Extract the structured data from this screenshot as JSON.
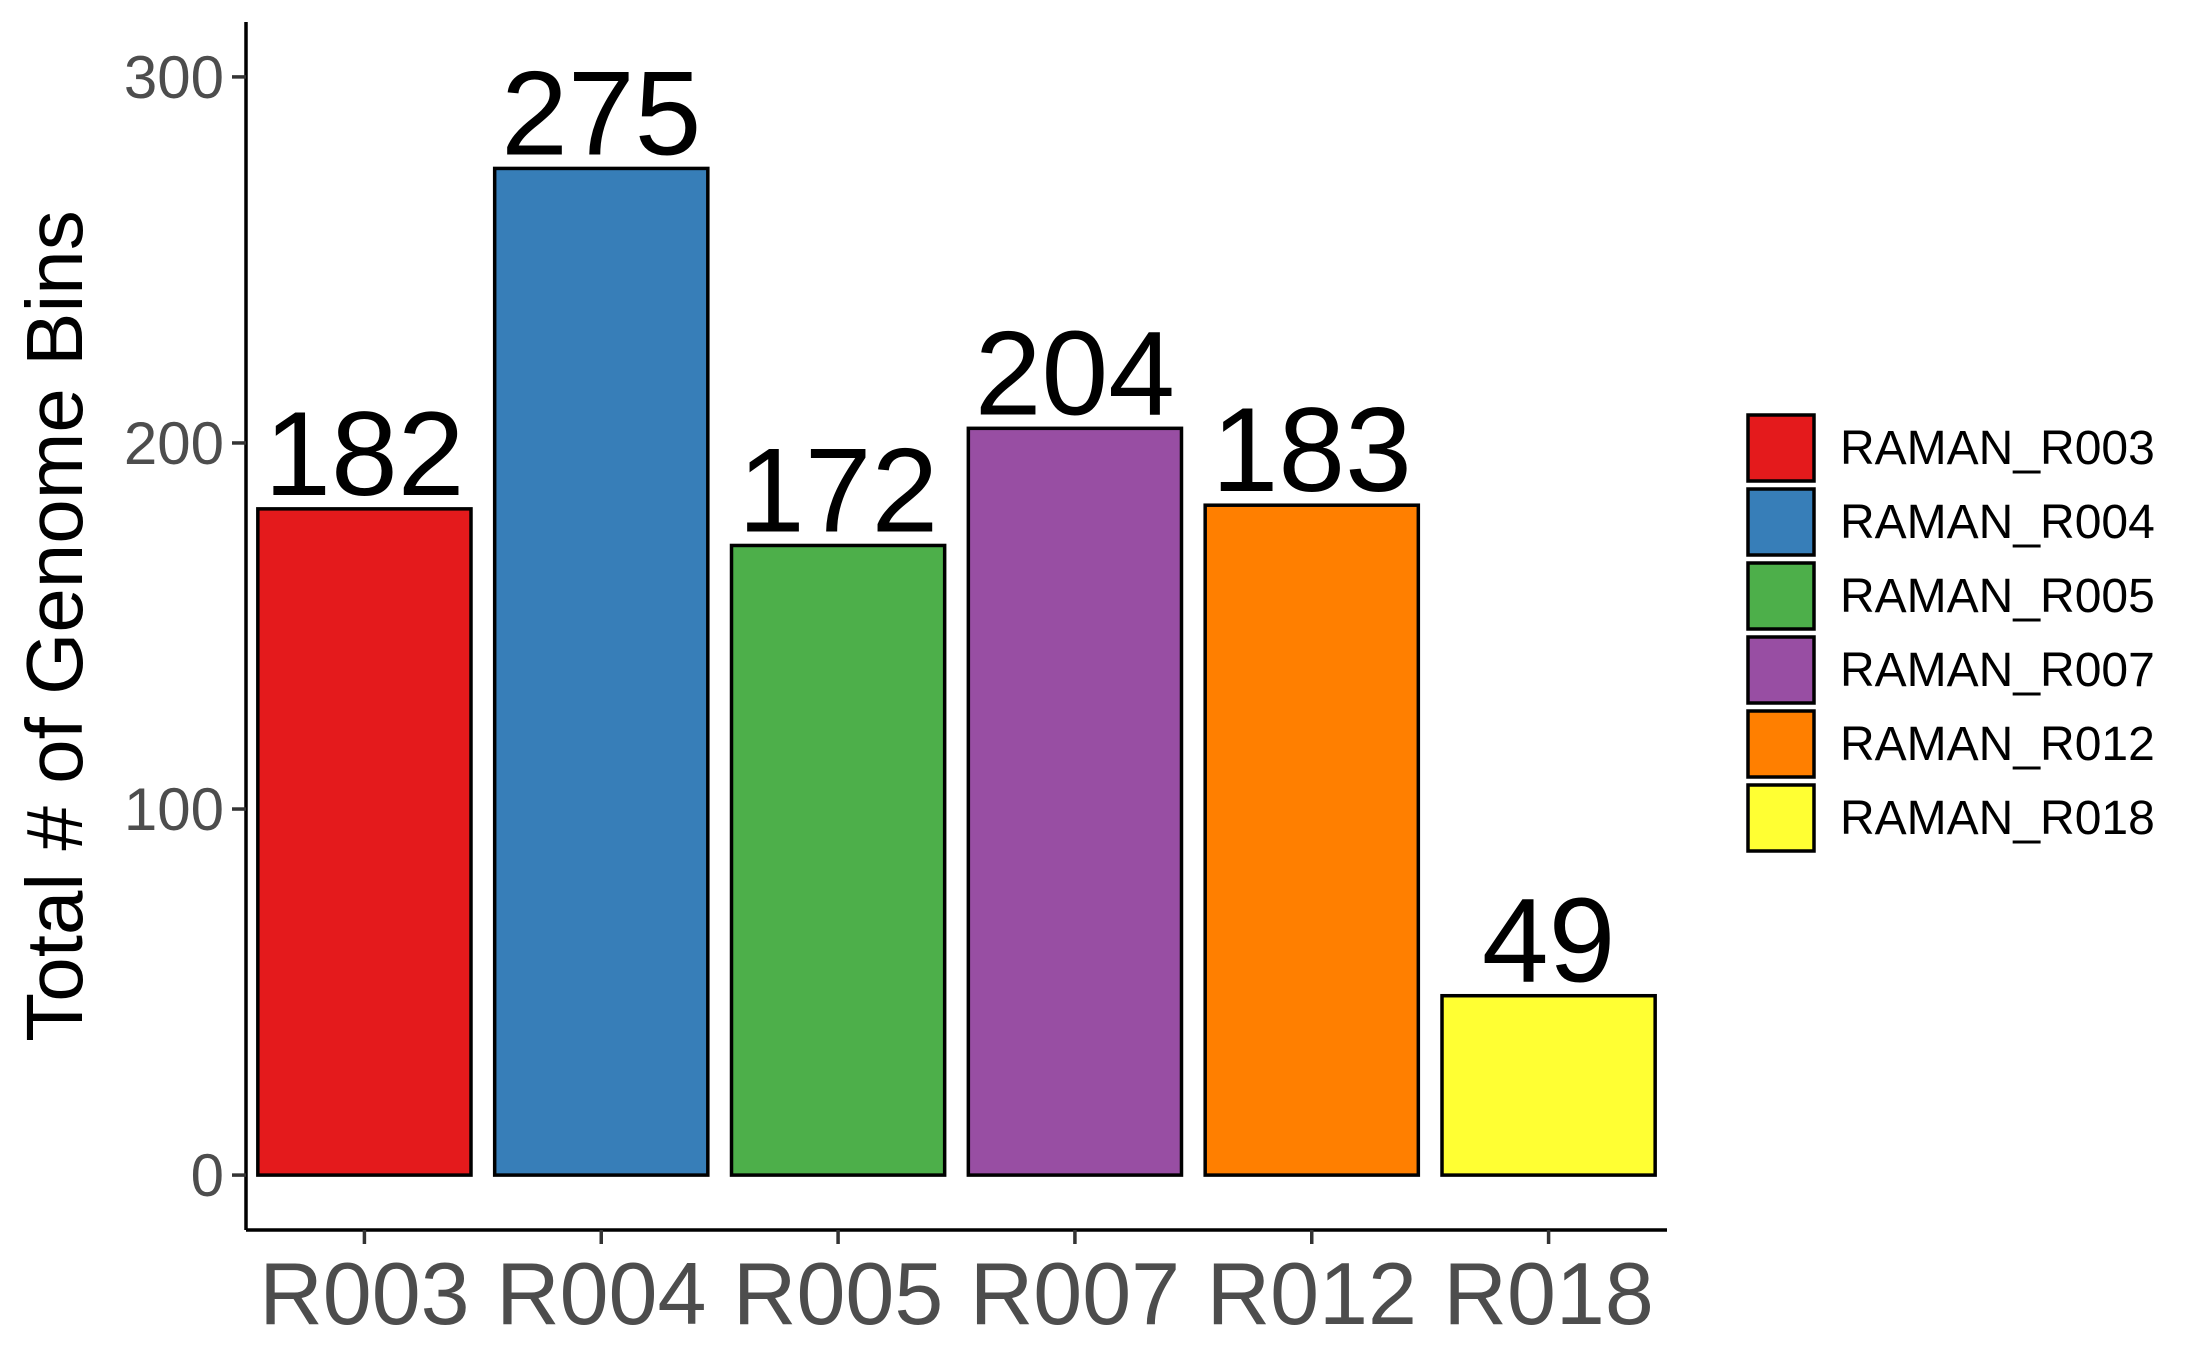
{
  "chart_data": {
    "type": "bar",
    "title": "",
    "xlabel": "",
    "ylabel": "Total # of Genome Bins",
    "categories": [
      "R003",
      "R004",
      "R005",
      "R007",
      "R012",
      "R018"
    ],
    "values": [
      182,
      275,
      172,
      204,
      183,
      49
    ],
    "data_labels": [
      "182",
      "275",
      "172",
      "204",
      "183",
      "49"
    ],
    "colors": [
      "#E41A1C",
      "#377EB8",
      "#4DAF4A",
      "#984EA3",
      "#FF7F00",
      "#FFFF33"
    ],
    "ylim": [
      -15,
      315
    ],
    "yticks": [
      0,
      100,
      200,
      300
    ],
    "ytick_labels": [
      "0",
      "100",
      "200",
      "300"
    ],
    "grid": false,
    "legend": {
      "position": "right",
      "entries": [
        "RAMAN_R003",
        "RAMAN_R004",
        "RAMAN_R005",
        "RAMAN_R007",
        "RAMAN_R012",
        "RAMAN_R018"
      ]
    },
    "bar_border_color": "#000000",
    "axis_text_color": "#4D4D4D"
  }
}
